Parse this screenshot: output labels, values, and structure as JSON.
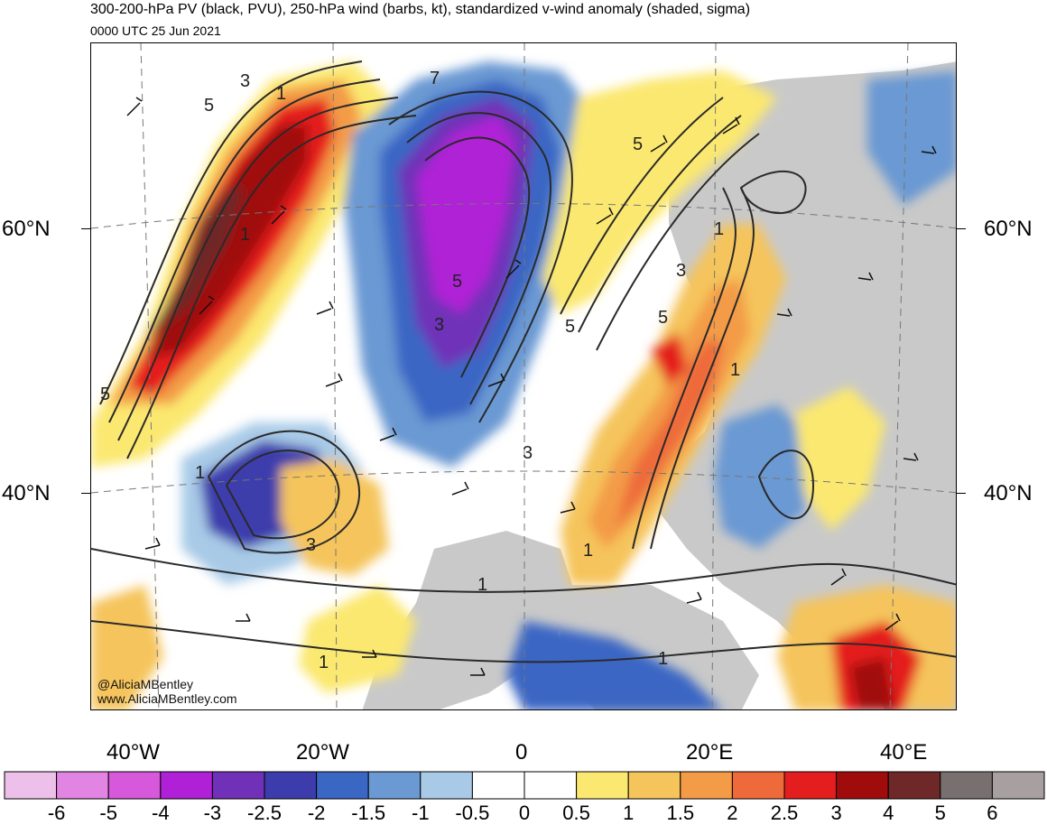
{
  "header": {
    "title": "300-200-hPa PV (black, PVU), 250-hPa wind (barbs, kt), standardized v-wind anomaly (shaded, sigma)",
    "valid_time": "0000 UTC 25 Jun 2021"
  },
  "axes": {
    "lat_left_60": "60°N",
    "lat_left_40": "40°N",
    "lat_right_60": "60°N",
    "lat_right_40": "40°N",
    "lon_40w": "40°W",
    "lon_20w": "20°W",
    "lon_0": "0",
    "lon_20e": "20°E",
    "lon_40e": "40°E"
  },
  "credits": {
    "handle": "@AliciaMBentley",
    "site": "www.AliciaMBentley.com"
  },
  "contour_labels": [
    "3",
    "5",
    "1",
    "7",
    "5",
    "3",
    "1",
    "5",
    "5",
    "1",
    "5",
    "5",
    "3",
    "3",
    "1",
    "1",
    "3",
    "1",
    "1",
    "1",
    "1"
  ],
  "colorbar": {
    "labels": [
      "-6",
      "-5",
      "-4",
      "-3",
      "-2.5",
      "-2",
      "-1.5",
      "-1",
      "-0.5",
      "0",
      "0.5",
      "1",
      "1.5",
      "2",
      "2.5",
      "3",
      "4",
      "5",
      "6"
    ],
    "colors": [
      "#ecc0e8",
      "#e184e2",
      "#d758da",
      "#b020d6",
      "#7030b8",
      "#3c3cac",
      "#3a66c4",
      "#6b99d3",
      "#a8cae7",
      "#ffffff",
      "#ffffff",
      "#fbe870",
      "#f5c45b",
      "#f39b46",
      "#ee6a3a",
      "#e41e1e",
      "#a00b0b",
      "#6e2828",
      "#77706e",
      "#a8a0a0"
    ]
  }
}
